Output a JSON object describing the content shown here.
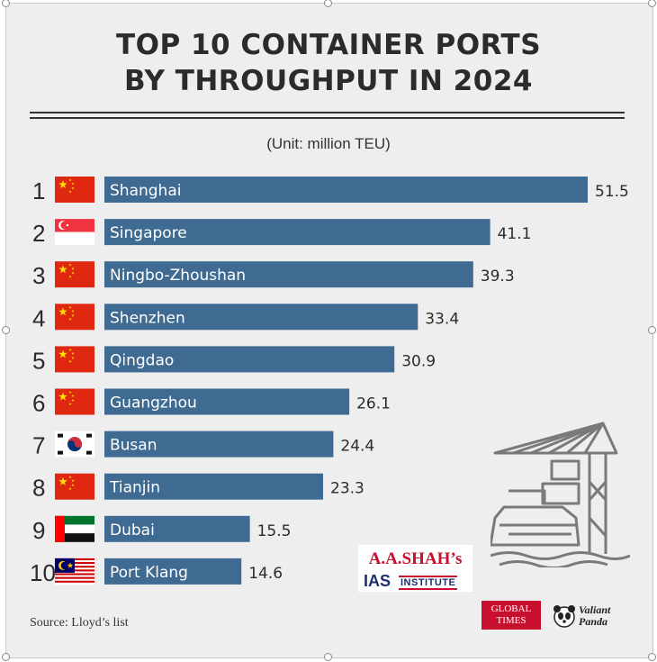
{
  "header": {
    "title_line1": "TOP 10 CONTAINER PORTS",
    "title_line2": "BY THROUGHPUT IN 2024",
    "unit": "(Unit: million TEU)"
  },
  "footer": {
    "source": "Source: Lloyd’s list",
    "brand_line1": "A.A.SHAH’s",
    "brand_line2": "IAS",
    "brand_line3": "INSTITUTE",
    "logo_gt": "GLOBAL TIMES",
    "logo_vp": "Valiant Panda"
  },
  "colors": {
    "bar": "#3f6a91",
    "text": "#2b2b2b",
    "background": "#eeeeef"
  },
  "chart_data": {
    "type": "bar",
    "orientation": "horizontal",
    "title": "TOP 10 CONTAINER PORTS BY THROUGHPUT IN 2024",
    "unit": "million TEU",
    "ranks": [
      "1",
      "2",
      "3",
      "4",
      "5",
      "6",
      "7",
      "8",
      "9",
      "10"
    ],
    "categories": [
      "Shanghai",
      "Singapore",
      "Ningbo-Zhoushan",
      "Shenzhen",
      "Qingdao",
      "Guangzhou",
      "Busan",
      "Tianjin",
      "Dubai",
      "Port Klang"
    ],
    "values": [
      51.5,
      41.1,
      39.3,
      33.4,
      30.9,
      26.1,
      24.4,
      23.3,
      15.5,
      14.6
    ],
    "value_labels": [
      "51.5",
      "41.1",
      "39.3",
      "33.4",
      "30.9",
      "26.1",
      "24.4",
      "23.3",
      "15.5",
      "14.6"
    ],
    "flags": [
      "china",
      "singapore",
      "china",
      "china",
      "china",
      "china",
      "south-korea",
      "china",
      "uae",
      "malaysia"
    ],
    "xlim": [
      0,
      51.5
    ],
    "grid": false
  }
}
